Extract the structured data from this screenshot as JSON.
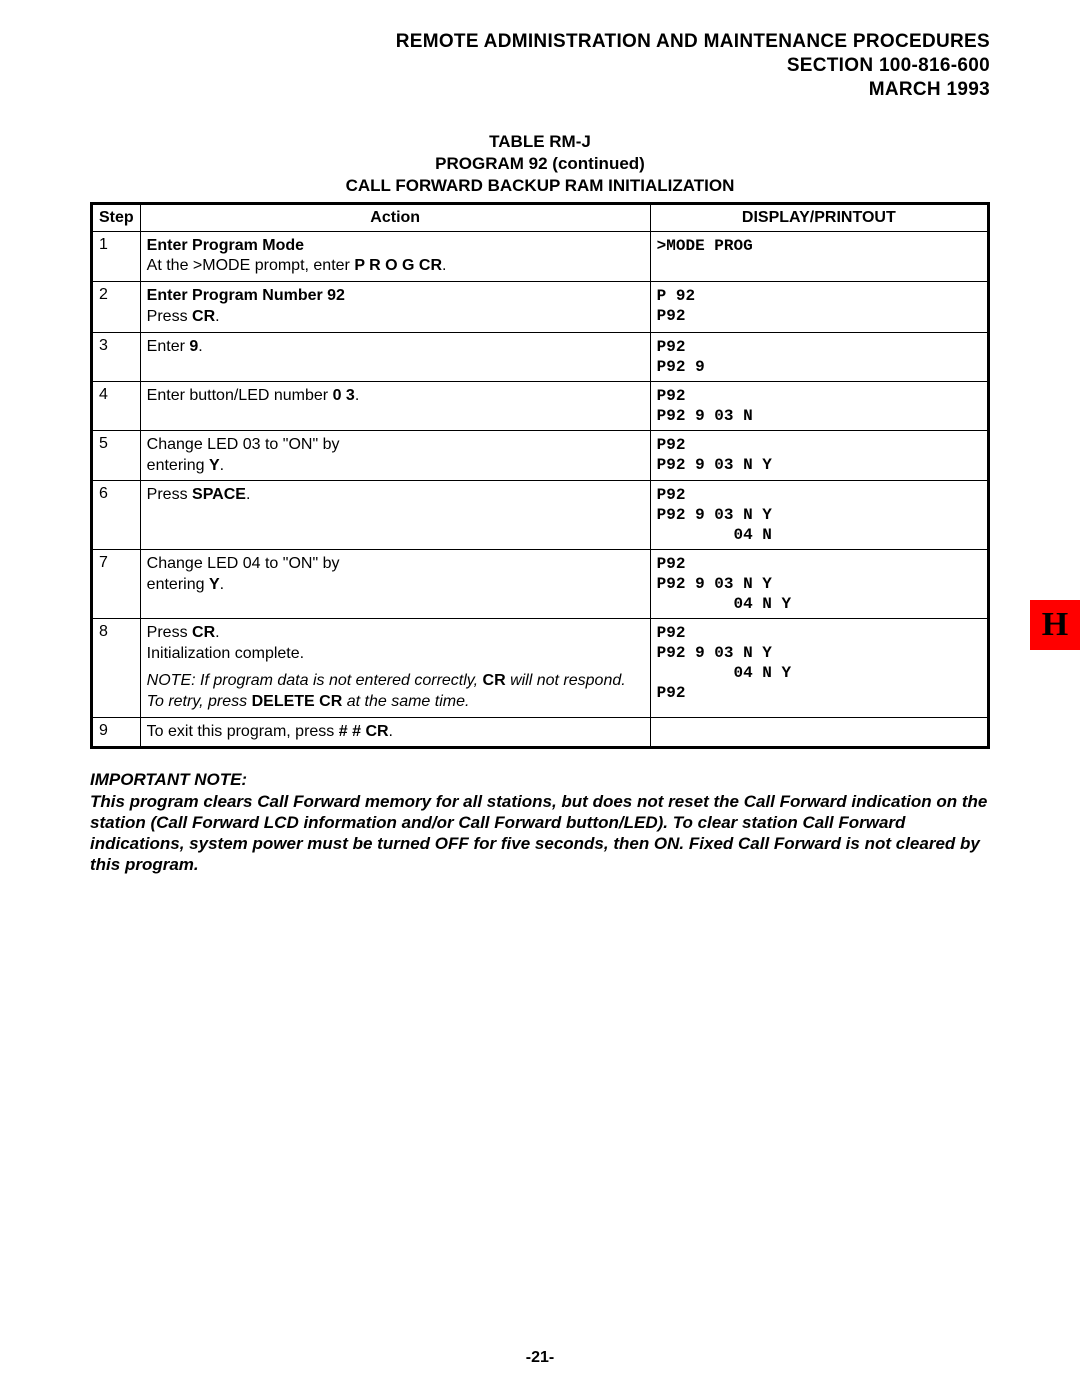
{
  "header": {
    "line1": "REMOTE ADMINISTRATION AND MAINTENANCE PROCEDURES",
    "line2": "SECTION 100-816-600",
    "line3": "MARCH 1993"
  },
  "tableTitle": {
    "line1": "TABLE RM-J",
    "line2": "PROGRAM 92 (continued)",
    "line3": "CALL FORWARD BACKUP RAM INITIALIZATION"
  },
  "columns": {
    "step": "Step",
    "action": "Action",
    "display": "DISPLAY/PRINTOUT"
  },
  "rows": {
    "r1": {
      "step": "1",
      "action_b1": "Enter Program Mode",
      "action_l2a": "At the >MODE prompt, enter ",
      "action_l2b": "P R O G CR",
      "action_l2c": ".",
      "display": ">MODE PROG"
    },
    "r2": {
      "step": "2",
      "action_b1": "Enter Program Number 92",
      "action_l2a": "Press ",
      "action_l2b": "CR",
      "action_l2c": ".",
      "display": "P 92\nP92"
    },
    "r3": {
      "step": "3",
      "action_l1a": "Enter ",
      "action_l1b": "9",
      "action_l1c": ".",
      "display": "P92\nP92 9"
    },
    "r4": {
      "step": "4",
      "action_l1a": "Enter button/LED number ",
      "action_l1b": "0 3",
      "action_l1c": ".",
      "display": "P92\nP92 9 03 N"
    },
    "r5": {
      "step": "5",
      "action_l1": "Change LED 03 to \"ON\" by",
      "action_l2a": "entering ",
      "action_l2b": "Y",
      "action_l2c": ".",
      "display": "P92\nP92 9 03 N Y"
    },
    "r6": {
      "step": "6",
      "action_l1a": "Press ",
      "action_l1b": "SPACE",
      "action_l1c": ".",
      "display": "P92\nP92 9 03 N Y\n        04 N"
    },
    "r7": {
      "step": "7",
      "action_l1": "Change LED 04 to \"ON\" by",
      "action_l2a": "entering ",
      "action_l2b": "Y",
      "action_l2c": ".",
      "display": "P92\nP92 9 03 N Y\n        04 N Y"
    },
    "r8": {
      "step": "8",
      "action_l1a": "Press ",
      "action_l1b": "CR",
      "action_l1c": ".",
      "action_l2": "Initialization complete.",
      "note_a": "NOTE: If program data is not entered correctly, ",
      "note_b": "CR",
      "note_c": " will not respond. To retry, press ",
      "note_d": "DELETE CR",
      "note_e": " at the same time.",
      "display": "P92\nP92 9 03 N Y\n        04 N Y\nP92"
    },
    "r9": {
      "step": "9",
      "action_l1a": "To exit this program, press ",
      "action_l1b": "# # CR",
      "action_l1c": ".",
      "display": ""
    }
  },
  "importantNote": {
    "label": "IMPORTANT NOTE:",
    "body": "This program clears Call Forward memory for all stations, but does not reset the Call Forward indication on the station (Call Forward LCD information and/or Call Forward button/LED). To clear station Call Forward indications, system power must be turned OFF for five seconds, then ON. Fixed Call Forward is not cleared by this program."
  },
  "pageNumber": "-21-",
  "sideTab": "H"
}
